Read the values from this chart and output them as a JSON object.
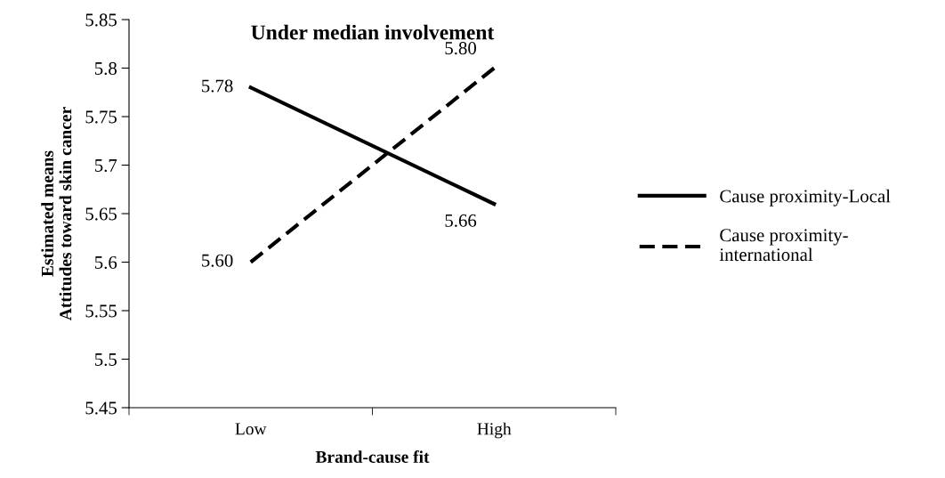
{
  "chart_data": {
    "type": "line",
    "title": "Under median involvement",
    "xlabel": "Brand-cause fit",
    "ylabel": "Estimated means\nAttitudes toward skin cancer",
    "categories": [
      "Low",
      "High"
    ],
    "series": [
      {
        "name": "Cause proximity-Local",
        "color": "#000000",
        "line_style": "solid",
        "values": [
          5.78,
          5.66
        ],
        "value_labels": [
          "5.78",
          "5.66"
        ]
      },
      {
        "name": "Cause proximity-\ninternational",
        "color": "#000000",
        "line_style": "dashed",
        "values": [
          5.6,
          5.8
        ],
        "value_labels": [
          "5.60",
          "5.80"
        ]
      }
    ],
    "ylim": [
      5.45,
      5.85
    ],
    "yticks": [
      5.45,
      5.5,
      5.55,
      5.6,
      5.65,
      5.7,
      5.75,
      5.8,
      5.85
    ],
    "grid": false,
    "legend": "right",
    "marker": "none"
  }
}
